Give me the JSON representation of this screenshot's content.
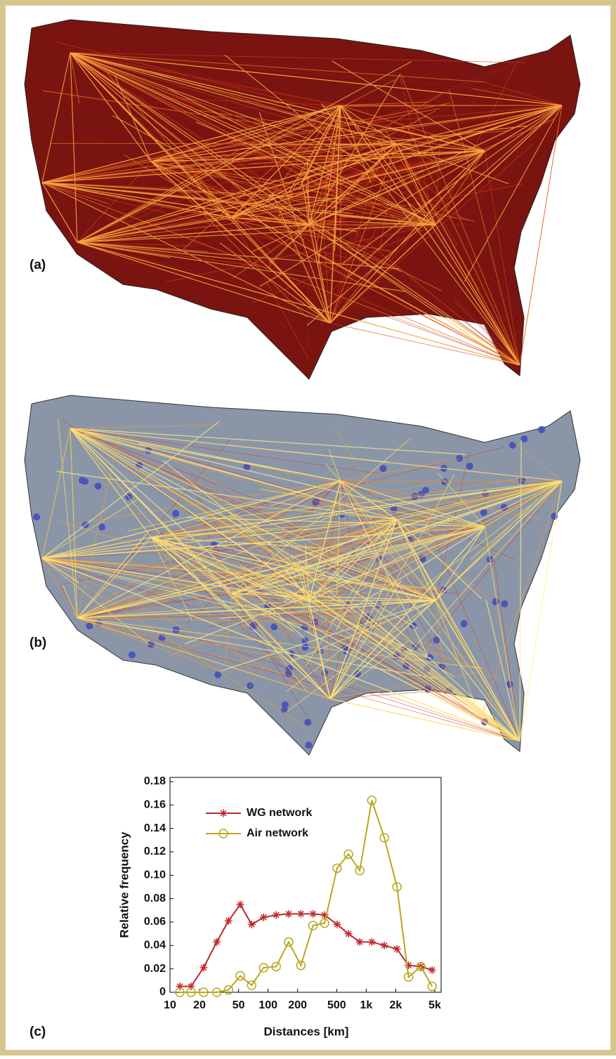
{
  "panel_labels": [
    "(a)",
    "(b)",
    "(c)"
  ],
  "chart_data": {
    "type": "line",
    "xlabel": "Distances [km]",
    "ylabel": "Relative frequency",
    "x": [
      12.6,
      16.4,
      22,
      30,
      39.5,
      52,
      68,
      90,
      121,
      162,
      216,
      287,
      376,
      505,
      660,
      860,
      1140,
      1530,
      2060,
      2700,
      3600,
      4700
    ],
    "series": [
      {
        "name": "WG network",
        "color": "#c0282d",
        "marker": "star",
        "values": [
          0.005,
          0.005,
          0.021,
          0.043,
          0.061,
          0.075,
          0.058,
          0.064,
          0.066,
          0.067,
          0.067,
          0.067,
          0.066,
          0.058,
          0.05,
          0.043,
          0.043,
          0.04,
          0.037,
          0.023,
          0.022,
          0.019
        ]
      },
      {
        "name": "Air network",
        "color": "#b8a81e",
        "marker": "circle",
        "values": [
          0,
          0,
          0,
          0,
          0.002,
          0.014,
          0.006,
          0.021,
          0.022,
          0.043,
          0.023,
          0.057,
          0.059,
          0.106,
          0.118,
          0.104,
          0.164,
          0.132,
          0.09,
          0.013,
          0.022,
          0.005
        ]
      }
    ],
    "xscale": "log",
    "xlim": [
      10,
      5800
    ],
    "ylim": [
      0,
      0.18
    ],
    "xticks": [
      10,
      20,
      50,
      100,
      200,
      500,
      {
        "value": 1000,
        "label": "1k"
      },
      {
        "value": 2000,
        "label": "2k"
      },
      {
        "value": 5000,
        "label": "5k"
      }
    ],
    "yticks": [
      0,
      0.02,
      0.04,
      0.06,
      0.08,
      {
        "value": 0.1,
        "label": "0.10"
      },
      0.12,
      0.14,
      0.16,
      0.18
    ],
    "legend": "upper left"
  }
}
